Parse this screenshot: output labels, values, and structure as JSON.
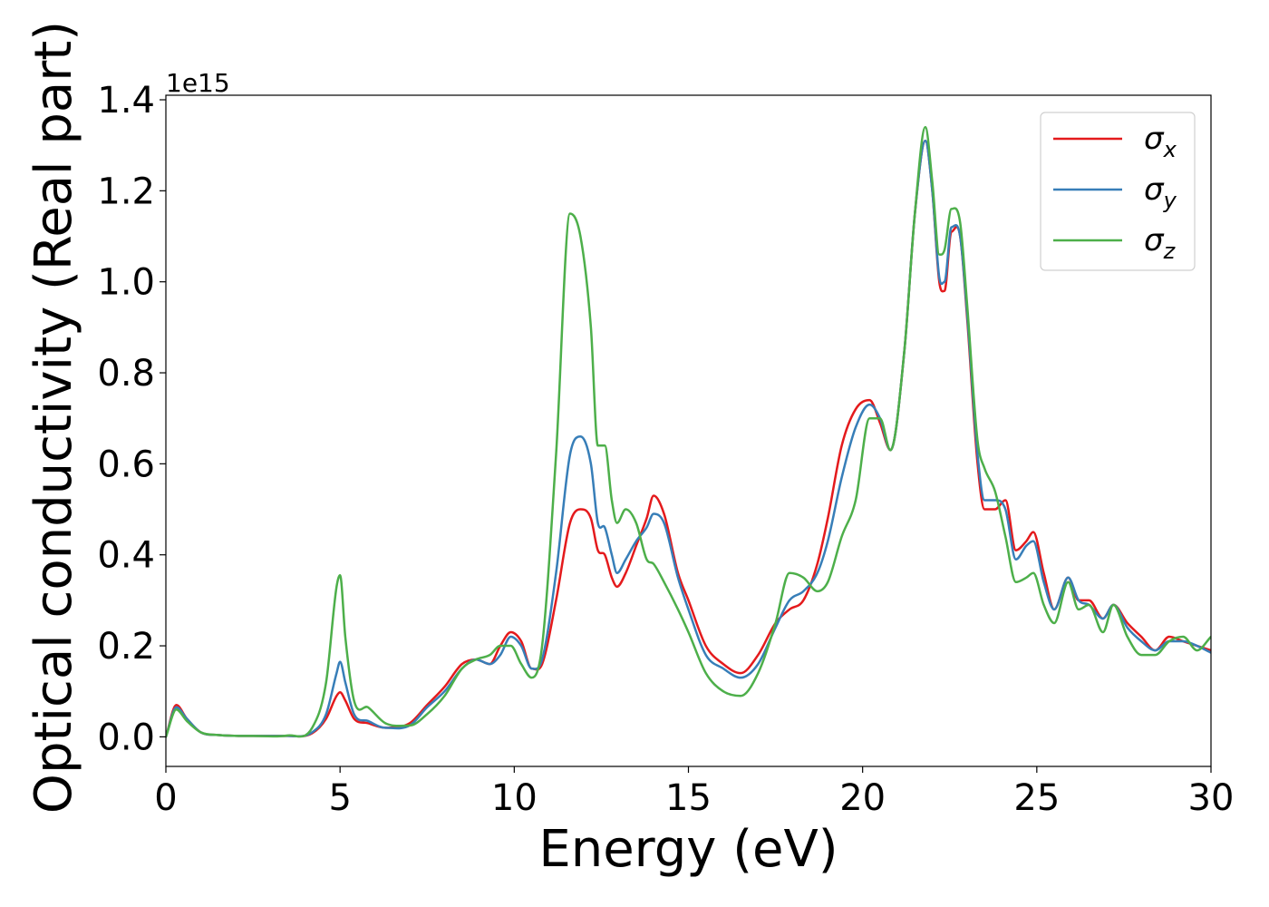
{
  "chart_data": {
    "type": "line",
    "title": "",
    "xlabel": "Energy (eV)",
    "ylabel": "Optical conductivity (Real part)",
    "y_multiplier_label": "1e15",
    "xlim": [
      0,
      30
    ],
    "ylim": [
      -0.065,
      1.41
    ],
    "x_ticks": [
      0,
      5,
      10,
      15,
      20,
      25,
      30
    ],
    "x_tick_labels": [
      "0",
      "5",
      "10",
      "15",
      "20",
      "25",
      "30"
    ],
    "y_ticks": [
      0.0,
      0.2,
      0.4,
      0.6,
      0.8,
      1.0,
      1.2,
      1.4
    ],
    "y_tick_labels": [
      "0.0",
      "0.2",
      "0.4",
      "0.6",
      "0.8",
      "1.0",
      "1.2",
      "1.4"
    ],
    "grid": false,
    "legend_position": "upper right",
    "series": [
      {
        "name": "σ_x",
        "label_base": "σ",
        "label_sub": "x",
        "color": "#e41a1c",
        "x": [
          0,
          0.3,
          0.6,
          1.0,
          1.5,
          2.5,
          3.5,
          4.2,
          4.6,
          4.9,
          5.0,
          5.15,
          5.4,
          5.8,
          6.3,
          7.0,
          7.5,
          8.0,
          8.5,
          8.9,
          9.3,
          9.6,
          9.9,
          10.2,
          10.5,
          10.8,
          11.2,
          11.6,
          11.9,
          12.2,
          12.4,
          12.6,
          12.8,
          12.95,
          13.2,
          13.5,
          13.8,
          14.0,
          14.3,
          14.7,
          15.0,
          15.5,
          16.0,
          16.5,
          17.0,
          17.5,
          17.9,
          18.3,
          18.7,
          19.0,
          19.4,
          19.8,
          20.2,
          20.5,
          20.8,
          21.2,
          21.5,
          21.8,
          22.0,
          22.2,
          22.35,
          22.55,
          22.8,
          23.0,
          23.3,
          23.5,
          23.8,
          24.1,
          24.4,
          24.7,
          24.9,
          25.2,
          25.5,
          25.9,
          26.2,
          26.5,
          26.9,
          27.2,
          27.6,
          28.0,
          28.4,
          28.8,
          29.2,
          29.6,
          30.0
        ],
        "values": [
          0.0,
          0.07,
          0.04,
          0.01,
          0.004,
          0.002,
          0.002,
          0.008,
          0.04,
          0.09,
          0.098,
          0.08,
          0.04,
          0.03,
          0.02,
          0.03,
          0.07,
          0.11,
          0.16,
          0.17,
          0.16,
          0.2,
          0.23,
          0.21,
          0.15,
          0.16,
          0.3,
          0.47,
          0.5,
          0.48,
          0.41,
          0.4,
          0.35,
          0.33,
          0.36,
          0.42,
          0.48,
          0.53,
          0.49,
          0.36,
          0.3,
          0.2,
          0.16,
          0.14,
          0.18,
          0.25,
          0.28,
          0.3,
          0.38,
          0.48,
          0.64,
          0.72,
          0.74,
          0.69,
          0.63,
          0.85,
          1.15,
          1.31,
          1.2,
          1.0,
          0.98,
          1.11,
          1.1,
          0.92,
          0.6,
          0.5,
          0.5,
          0.52,
          0.41,
          0.43,
          0.45,
          0.36,
          0.28,
          0.35,
          0.3,
          0.3,
          0.26,
          0.29,
          0.25,
          0.22,
          0.19,
          0.22,
          0.21,
          0.2,
          0.19
        ]
      },
      {
        "name": "σ_y",
        "label_base": "σ",
        "label_sub": "y",
        "color": "#377eb8",
        "x": [
          0,
          0.3,
          0.6,
          1.0,
          1.5,
          2.5,
          3.5,
          4.2,
          4.6,
          4.9,
          5.0,
          5.15,
          5.4,
          5.8,
          6.3,
          7.0,
          7.5,
          8.0,
          8.5,
          8.9,
          9.3,
          9.6,
          9.9,
          10.2,
          10.5,
          10.8,
          11.2,
          11.6,
          11.9,
          12.2,
          12.4,
          12.6,
          12.8,
          12.95,
          13.2,
          13.5,
          13.8,
          14.0,
          14.3,
          14.7,
          15.0,
          15.5,
          16.0,
          16.5,
          17.0,
          17.5,
          17.9,
          18.3,
          18.7,
          19.0,
          19.4,
          19.8,
          20.2,
          20.5,
          20.8,
          21.2,
          21.5,
          21.8,
          22.0,
          22.2,
          22.35,
          22.55,
          22.8,
          23.0,
          23.3,
          23.5,
          23.8,
          24.1,
          24.4,
          24.7,
          24.9,
          25.2,
          25.5,
          25.9,
          26.2,
          26.5,
          26.9,
          27.2,
          27.6,
          28.0,
          28.4,
          28.8,
          29.2,
          29.6,
          30.0
        ],
        "values": [
          0.0,
          0.065,
          0.04,
          0.01,
          0.004,
          0.002,
          0.002,
          0.01,
          0.05,
          0.14,
          0.165,
          0.12,
          0.05,
          0.035,
          0.02,
          0.025,
          0.065,
          0.1,
          0.15,
          0.17,
          0.16,
          0.18,
          0.22,
          0.2,
          0.15,
          0.17,
          0.36,
          0.62,
          0.66,
          0.6,
          0.47,
          0.46,
          0.4,
          0.36,
          0.39,
          0.43,
          0.46,
          0.49,
          0.47,
          0.35,
          0.28,
          0.18,
          0.15,
          0.13,
          0.16,
          0.24,
          0.3,
          0.32,
          0.36,
          0.43,
          0.57,
          0.68,
          0.73,
          0.7,
          0.63,
          0.85,
          1.15,
          1.31,
          1.2,
          1.01,
          1.0,
          1.12,
          1.1,
          0.93,
          0.62,
          0.52,
          0.52,
          0.5,
          0.39,
          0.42,
          0.43,
          0.34,
          0.28,
          0.35,
          0.3,
          0.29,
          0.26,
          0.29,
          0.24,
          0.21,
          0.19,
          0.21,
          0.21,
          0.2,
          0.185
        ]
      },
      {
        "name": "σ_z",
        "label_base": "σ",
        "label_sub": "z",
        "color": "#4daf4a",
        "x": [
          0,
          0.3,
          0.6,
          1.0,
          1.5,
          2.5,
          3.5,
          4.2,
          4.6,
          4.9,
          5.0,
          5.15,
          5.4,
          5.8,
          6.3,
          7.0,
          7.5,
          8.0,
          8.5,
          8.9,
          9.3,
          9.6,
          9.9,
          10.2,
          10.5,
          10.8,
          11.2,
          11.6,
          11.9,
          12.2,
          12.4,
          12.6,
          12.8,
          12.95,
          13.2,
          13.5,
          13.8,
          14.0,
          14.3,
          14.7,
          15.0,
          15.5,
          16.0,
          16.5,
          17.0,
          17.5,
          17.9,
          18.3,
          18.7,
          19.0,
          19.4,
          19.8,
          20.2,
          20.5,
          20.8,
          21.2,
          21.5,
          21.8,
          22.0,
          22.2,
          22.35,
          22.55,
          22.8,
          23.0,
          23.3,
          23.5,
          23.8,
          24.1,
          24.4,
          24.7,
          24.9,
          25.2,
          25.5,
          25.9,
          26.2,
          26.5,
          26.9,
          27.2,
          27.6,
          28.0,
          28.4,
          28.8,
          29.2,
          29.6,
          30.0
        ],
        "values": [
          0.0,
          0.06,
          0.035,
          0.01,
          0.004,
          0.002,
          0.003,
          0.02,
          0.12,
          0.33,
          0.355,
          0.22,
          0.08,
          0.065,
          0.03,
          0.025,
          0.05,
          0.09,
          0.15,
          0.17,
          0.18,
          0.2,
          0.2,
          0.16,
          0.13,
          0.2,
          0.62,
          1.15,
          1.1,
          0.9,
          0.64,
          0.64,
          0.52,
          0.47,
          0.5,
          0.47,
          0.39,
          0.38,
          0.34,
          0.28,
          0.23,
          0.14,
          0.1,
          0.09,
          0.14,
          0.25,
          0.36,
          0.35,
          0.32,
          0.34,
          0.44,
          0.52,
          0.7,
          0.7,
          0.63,
          0.85,
          1.15,
          1.34,
          1.22,
          1.06,
          1.07,
          1.16,
          1.13,
          0.95,
          0.65,
          0.59,
          0.54,
          0.44,
          0.34,
          0.35,
          0.36,
          0.29,
          0.25,
          0.34,
          0.28,
          0.29,
          0.23,
          0.29,
          0.22,
          0.18,
          0.18,
          0.21,
          0.22,
          0.19,
          0.22
        ]
      }
    ]
  }
}
